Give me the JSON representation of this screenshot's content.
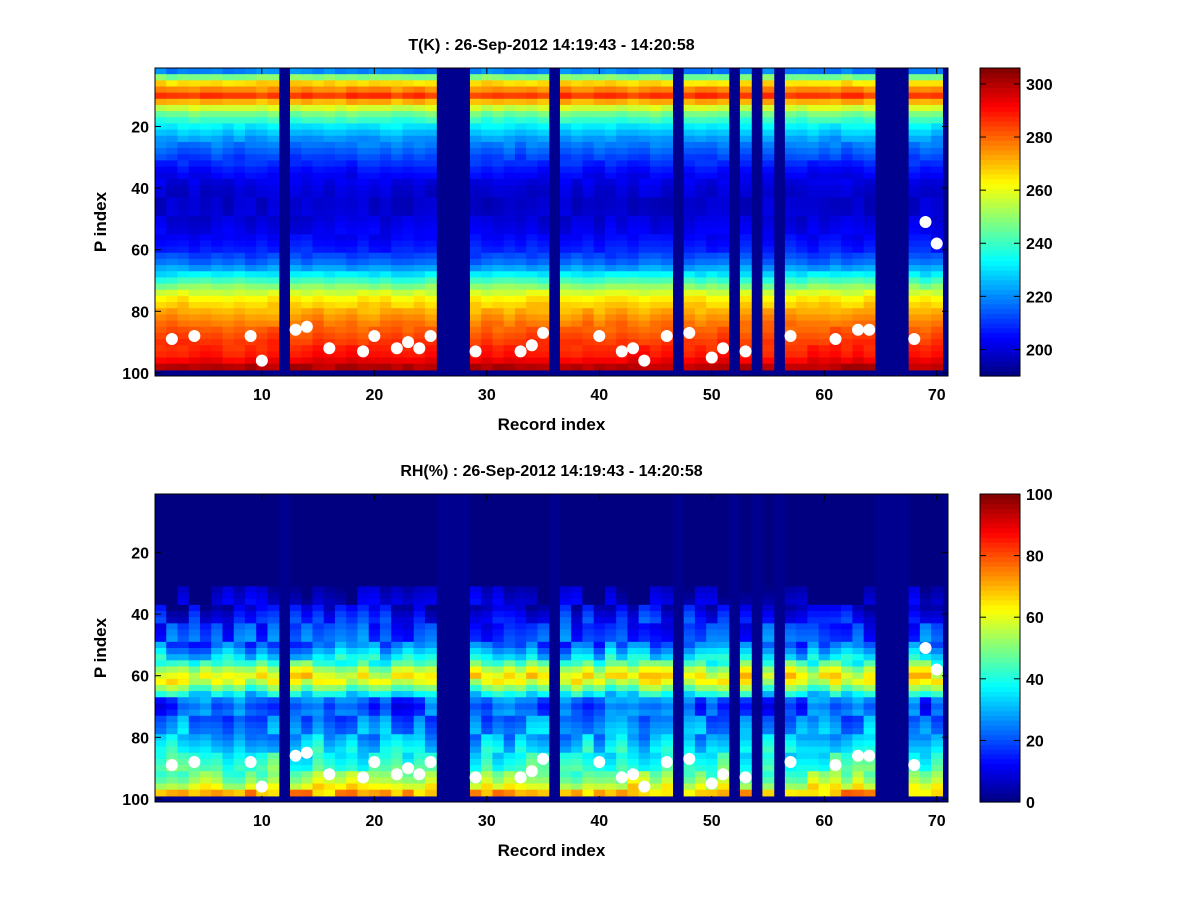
{
  "chart_data": [
    {
      "type": "heatmap",
      "title": "T(K) : 26-Sep-2012 14:19:43 - 14:20:58",
      "xlabel": "Record index",
      "ylabel": "P index",
      "xlim": [
        0.5,
        71
      ],
      "ylim": [
        1,
        101
      ],
      "y_reversed": true,
      "x_ticks": [
        10,
        20,
        30,
        40,
        50,
        60,
        70
      ],
      "y_ticks": [
        20,
        40,
        60,
        80,
        100
      ],
      "colormap": "jet",
      "colorbar": {
        "min": 190,
        "max": 306,
        "ticks": [
          200,
          220,
          240,
          260,
          280,
          300
        ]
      },
      "missing_records": [
        12,
        26,
        27,
        28,
        36,
        47,
        52,
        54,
        56,
        65,
        66,
        67,
        71
      ],
      "profile_rows": [
        1,
        5,
        10,
        15,
        20,
        25,
        30,
        35,
        40,
        45,
        50,
        55,
        60,
        65,
        70,
        75,
        80,
        85,
        90,
        95,
        98
      ],
      "profile_values": [
        205,
        262,
        285,
        250,
        232,
        220,
        212,
        204,
        200,
        198,
        200,
        203,
        208,
        218,
        240,
        262,
        272,
        280,
        286,
        290,
        300
      ],
      "dots": [
        {
          "x": 2,
          "y": 89
        },
        {
          "x": 4,
          "y": 88
        },
        {
          "x": 9,
          "y": 88
        },
        {
          "x": 10,
          "y": 96
        },
        {
          "x": 13,
          "y": 86
        },
        {
          "x": 14,
          "y": 85
        },
        {
          "x": 16,
          "y": 92
        },
        {
          "x": 19,
          "y": 93
        },
        {
          "x": 20,
          "y": 88
        },
        {
          "x": 22,
          "y": 92
        },
        {
          "x": 23,
          "y": 90
        },
        {
          "x": 24,
          "y": 92
        },
        {
          "x": 25,
          "y": 88
        },
        {
          "x": 29,
          "y": 93
        },
        {
          "x": 33,
          "y": 93
        },
        {
          "x": 34,
          "y": 91
        },
        {
          "x": 35,
          "y": 87
        },
        {
          "x": 40,
          "y": 88
        },
        {
          "x": 42,
          "y": 93
        },
        {
          "x": 43,
          "y": 92
        },
        {
          "x": 44,
          "y": 96
        },
        {
          "x": 46,
          "y": 88
        },
        {
          "x": 48,
          "y": 87
        },
        {
          "x": 50,
          "y": 95
        },
        {
          "x": 51,
          "y": 92
        },
        {
          "x": 53,
          "y": 93
        },
        {
          "x": 57,
          "y": 88
        },
        {
          "x": 61,
          "y": 89
        },
        {
          "x": 63,
          "y": 86
        },
        {
          "x": 64,
          "y": 86
        },
        {
          "x": 68,
          "y": 89
        },
        {
          "x": 69,
          "y": 51
        },
        {
          "x": 70,
          "y": 58
        }
      ]
    },
    {
      "type": "heatmap",
      "title": "RH(%) : 26-Sep-2012 14:19:43 - 14:20:58",
      "xlabel": "Record index",
      "ylabel": "P index",
      "xlim": [
        0.5,
        71
      ],
      "ylim": [
        1,
        101
      ],
      "y_reversed": true,
      "x_ticks": [
        10,
        20,
        30,
        40,
        50,
        60,
        70
      ],
      "y_ticks": [
        20,
        40,
        60,
        80,
        100
      ],
      "colormap": "jet",
      "colorbar": {
        "min": 0,
        "max": 100,
        "ticks": [
          0,
          20,
          40,
          60,
          80,
          100
        ]
      },
      "missing_records": [
        12,
        26,
        27,
        28,
        36,
        47,
        52,
        54,
        56,
        65,
        66,
        67,
        71
      ],
      "profile_rows": [
        1,
        30,
        36,
        40,
        45,
        50,
        55,
        58,
        60,
        62,
        65,
        68,
        70,
        75,
        80,
        85,
        90,
        95,
        98
      ],
      "profile_values": [
        0,
        0,
        5,
        12,
        18,
        22,
        38,
        55,
        62,
        58,
        42,
        22,
        18,
        25,
        30,
        38,
        45,
        55,
        70
      ],
      "dots": [
        {
          "x": 2,
          "y": 89
        },
        {
          "x": 4,
          "y": 88
        },
        {
          "x": 9,
          "y": 88
        },
        {
          "x": 10,
          "y": 96
        },
        {
          "x": 13,
          "y": 86
        },
        {
          "x": 14,
          "y": 85
        },
        {
          "x": 16,
          "y": 92
        },
        {
          "x": 19,
          "y": 93
        },
        {
          "x": 20,
          "y": 88
        },
        {
          "x": 22,
          "y": 92
        },
        {
          "x": 23,
          "y": 90
        },
        {
          "x": 24,
          "y": 92
        },
        {
          "x": 25,
          "y": 88
        },
        {
          "x": 29,
          "y": 93
        },
        {
          "x": 33,
          "y": 93
        },
        {
          "x": 34,
          "y": 91
        },
        {
          "x": 35,
          "y": 87
        },
        {
          "x": 40,
          "y": 88
        },
        {
          "x": 42,
          "y": 93
        },
        {
          "x": 43,
          "y": 92
        },
        {
          "x": 44,
          "y": 96
        },
        {
          "x": 46,
          "y": 88
        },
        {
          "x": 48,
          "y": 87
        },
        {
          "x": 50,
          "y": 95
        },
        {
          "x": 51,
          "y": 92
        },
        {
          "x": 53,
          "y": 93
        },
        {
          "x": 57,
          "y": 88
        },
        {
          "x": 61,
          "y": 89
        },
        {
          "x": 63,
          "y": 86
        },
        {
          "x": 64,
          "y": 86
        },
        {
          "x": 68,
          "y": 89
        },
        {
          "x": 69,
          "y": 51
        },
        {
          "x": 70,
          "y": 58
        }
      ]
    }
  ]
}
